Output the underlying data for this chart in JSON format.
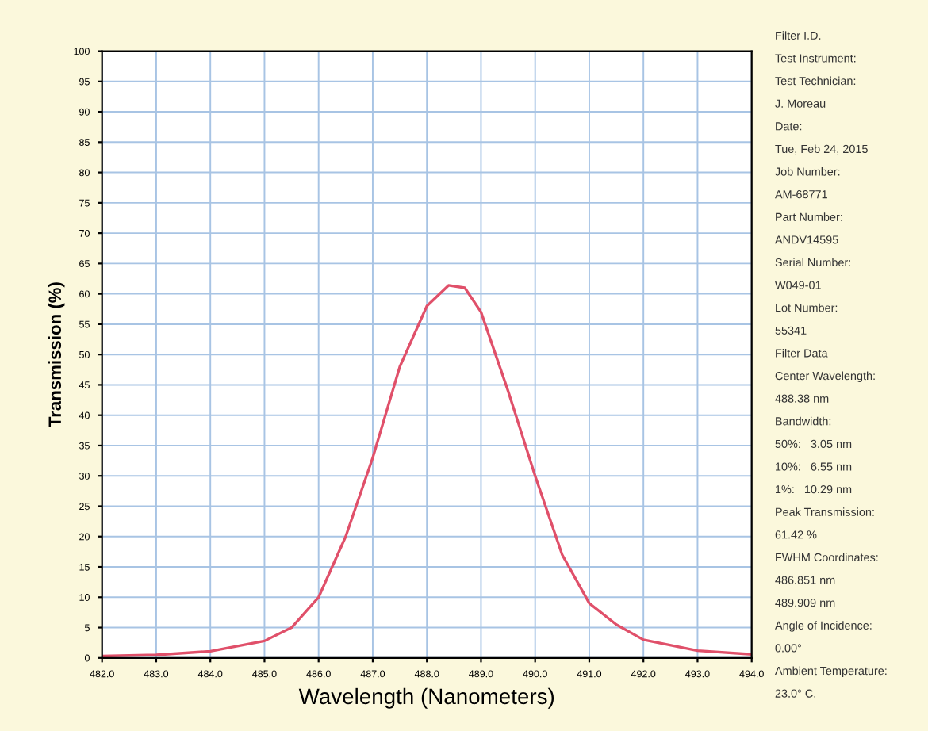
{
  "chart_data": {
    "type": "line",
    "xlabel": "Wavelength (Nanometers)",
    "ylabel": "Transmission (%)",
    "x": [
      482.0,
      483.0,
      484.0,
      485.0,
      485.5,
      486.0,
      486.5,
      487.0,
      487.5,
      488.0,
      488.4,
      488.7,
      489.0,
      489.5,
      490.0,
      490.5,
      491.0,
      491.5,
      492.0,
      493.0,
      494.0
    ],
    "series": [
      {
        "color": "#e0506a",
        "values": [
          0.3,
          0.5,
          1.1,
          2.8,
          5,
          10,
          20,
          33,
          48,
          58,
          61.4,
          61,
          57,
          44,
          30,
          17,
          9,
          5.5,
          3,
          1.2,
          0.6
        ]
      }
    ],
    "xlim": [
      482,
      494
    ],
    "ylim": [
      0,
      100
    ],
    "xticks": [
      {
        "value": 482,
        "label": "482.0"
      },
      {
        "value": 483,
        "label": "483.0"
      },
      {
        "value": 484,
        "label": "484.0"
      },
      {
        "value": 485,
        "label": "485.0"
      },
      {
        "value": 486,
        "label": "486.0"
      },
      {
        "value": 487,
        "label": "487.0"
      },
      {
        "value": 488,
        "label": "488.0"
      },
      {
        "value": 489,
        "label": "489.0"
      },
      {
        "value": 490,
        "label": "490.0"
      },
      {
        "value": 491,
        "label": "491.0"
      },
      {
        "value": 492,
        "label": "492.0"
      },
      {
        "value": 493,
        "label": "493.0"
      },
      {
        "value": 494,
        "label": "494.0"
      }
    ],
    "yticks": [
      0,
      5,
      10,
      15,
      20,
      25,
      30,
      35,
      40,
      45,
      50,
      55,
      60,
      65,
      70,
      75,
      80,
      85,
      90,
      95,
      100
    ],
    "grid": true,
    "marker": "none",
    "line_style": "solid",
    "legend": false,
    "annotations": [
      "Filter I.D.",
      "Test Instrument:",
      "Test Technician:",
      "J. Moreau",
      "Date:",
      "Tue, Feb 24, 2015",
      "Job Number:",
      "AM-68771",
      "Part Number:",
      "ANDV14595",
      "Serial Number:",
      "W049-01",
      "Lot Number:",
      "55341",
      "Filter Data",
      "Center Wavelength:",
      "488.38 nm",
      "Bandwidth:",
      "50%:   3.05 nm",
      "10%:   6.55 nm",
      "1%:   10.29 nm",
      "Peak Transmission:",
      "61.42 %",
      "FWHM Coordinates:",
      "486.851 nm",
      "489.909 nm",
      "Angle of Incidence:",
      "0.00°",
      "Ambient Temperature:",
      "23.0° C."
    ]
  }
}
